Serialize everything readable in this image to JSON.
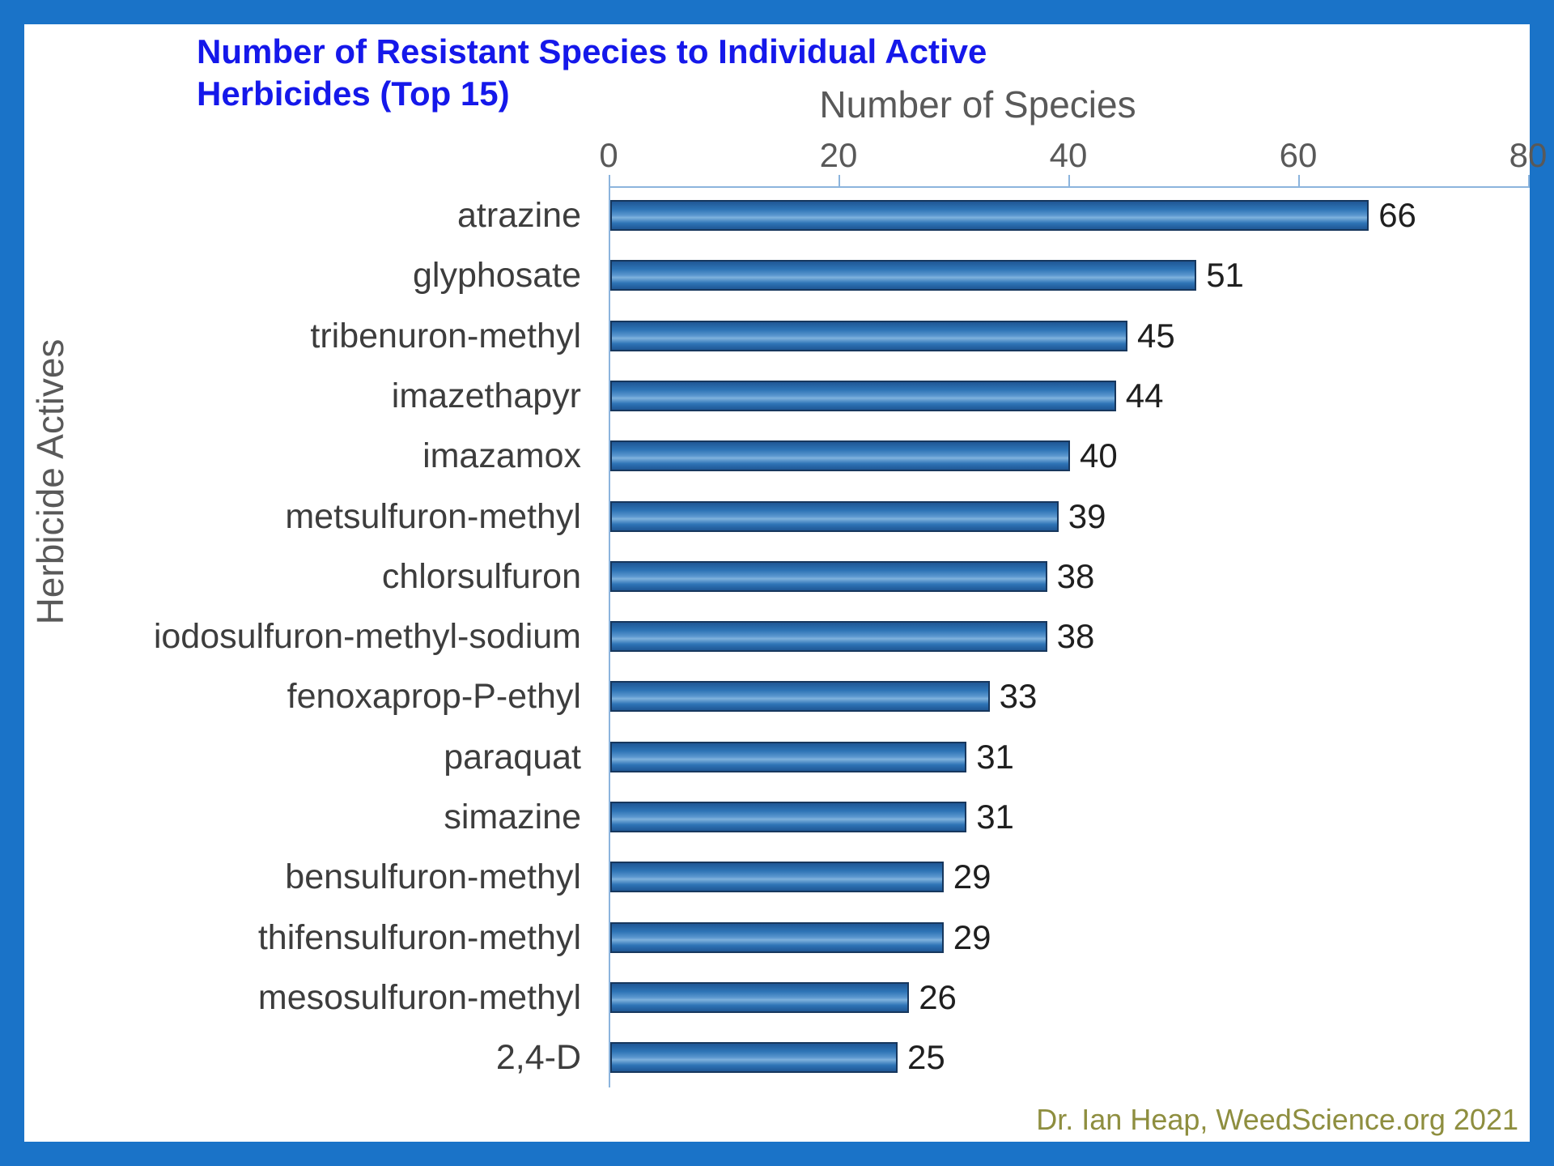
{
  "title": "Number of Resistant Species to Individual Active Herbicides (Top 15)",
  "attribution": "Dr. Ian Heap, WeedScience.org 2021",
  "colors": {
    "frame_border": "#1a73c8",
    "panel_background": "#ffffff",
    "title_text": "#1518ea",
    "axis_line": "#8cb4dd",
    "bar_fill": "#2e74b6",
    "bar_border": "#17375d",
    "axis_text": "#595959",
    "attribution_text": "#8e8e3f"
  },
  "chart_data": {
    "type": "bar",
    "orientation": "horizontal",
    "title": "Number of Resistant Species to Individual Active Herbicides (Top 15)",
    "xlabel": "Number of Species",
    "ylabel": "Herbicide Actives",
    "xlim": [
      0,
      80
    ],
    "xticks": [
      0,
      20,
      40,
      60,
      80
    ],
    "grid": false,
    "legend": null,
    "categories": [
      "atrazine",
      "glyphosate",
      "tribenuron-methyl",
      "imazethapyr",
      "imazamox",
      "metsulfuron-methyl",
      "chlorsulfuron",
      "iodosulfuron-methyl-sodium",
      "fenoxaprop-P-ethyl",
      "paraquat",
      "simazine",
      "bensulfuron-methyl",
      "thifensulfuron-methyl",
      "mesosulfuron-methyl",
      "2,4-D"
    ],
    "values": [
      66,
      51,
      45,
      44,
      40,
      39,
      38,
      38,
      33,
      31,
      31,
      29,
      29,
      26,
      25
    ],
    "data_labels_shown": true
  }
}
